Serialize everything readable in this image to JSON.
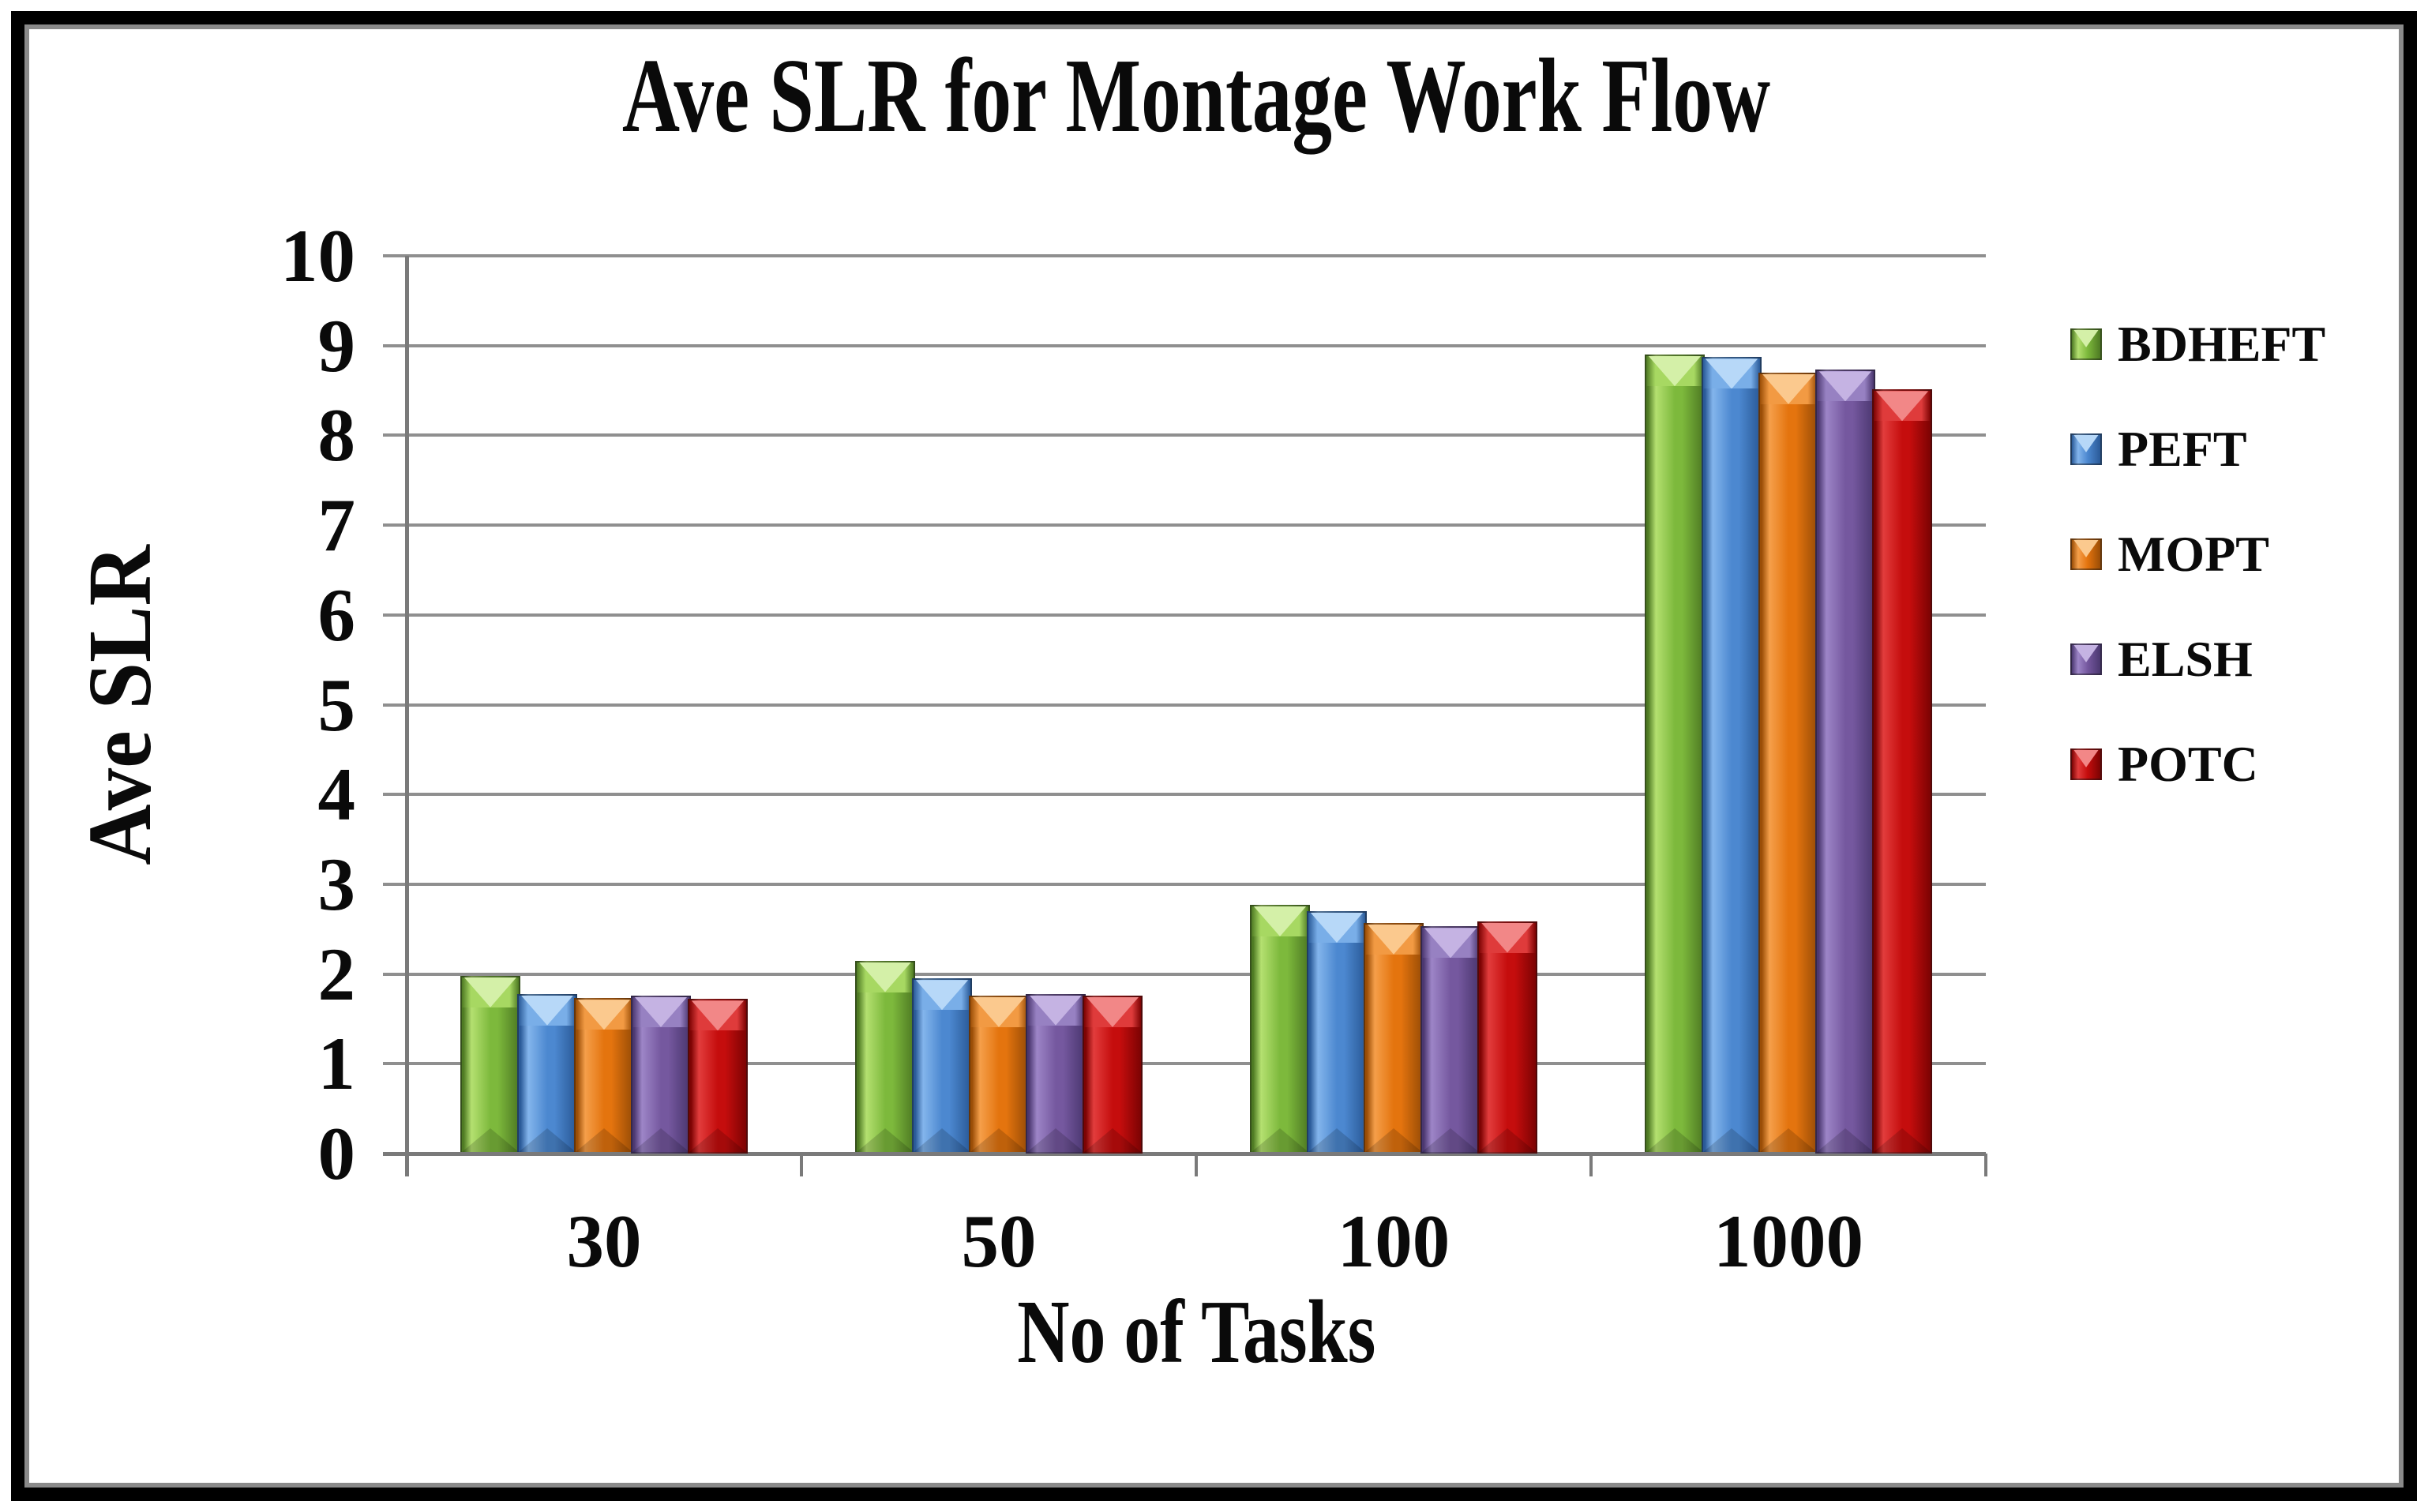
{
  "chart_data": {
    "type": "bar",
    "title": "Ave SLR for Montage Work Flow",
    "xlabel": "No of Tasks",
    "ylabel": "Ave SLR",
    "categories": [
      "30",
      "50",
      "100",
      "1000"
    ],
    "series": [
      {
        "name": "BDHEFT",
        "values": [
          1.98,
          2.15,
          2.77,
          8.9
        ],
        "color": {
          "main": "#7DB93C",
          "light": "#B4E070",
          "dark": "#4E7A23",
          "cap": "#A7D862",
          "capv": "#D4F0A8"
        }
      },
      {
        "name": "PEFT",
        "values": [
          1.78,
          1.95,
          2.7,
          8.87
        ],
        "color": {
          "main": "#4C88D0",
          "light": "#83B5EC",
          "dark": "#2A5A98",
          "cap": "#79AEE8",
          "capv": "#B7D8F8"
        }
      },
      {
        "name": "MOPT",
        "values": [
          1.73,
          1.76,
          2.57,
          8.7
        ],
        "color": {
          "main": "#E4740E",
          "light": "#F59F4A",
          "dark": "#9A4D06",
          "cap": "#F29A43",
          "capv": "#FBC98E"
        }
      },
      {
        "name": "ELSH",
        "values": [
          1.76,
          1.78,
          2.53,
          8.73
        ],
        "color": {
          "main": "#75589F",
          "light": "#9D85C7",
          "dark": "#4B3770",
          "cap": "#9781C2",
          "capv": "#C5B3E3"
        }
      },
      {
        "name": "POTC",
        "values": [
          1.72,
          1.76,
          2.59,
          8.51
        ],
        "color": {
          "main": "#C50D0D",
          "light": "#E23C3C",
          "dark": "#7C0303",
          "cap": "#DF3B3B",
          "capv": "#F28787"
        }
      }
    ],
    "ylim": [
      0,
      10
    ],
    "yticks": [
      0,
      1,
      2,
      3,
      4,
      5,
      6,
      7,
      8,
      9,
      10
    ],
    "grid": true,
    "legend_position": "right",
    "colors": {
      "gridline": "#8F8F8F",
      "axis": "#7A7A7A",
      "text": "#0A0A0A",
      "frame_outer": "#000000",
      "frame_inner": "#8A8A8A",
      "background": "#FFFFFF"
    }
  }
}
